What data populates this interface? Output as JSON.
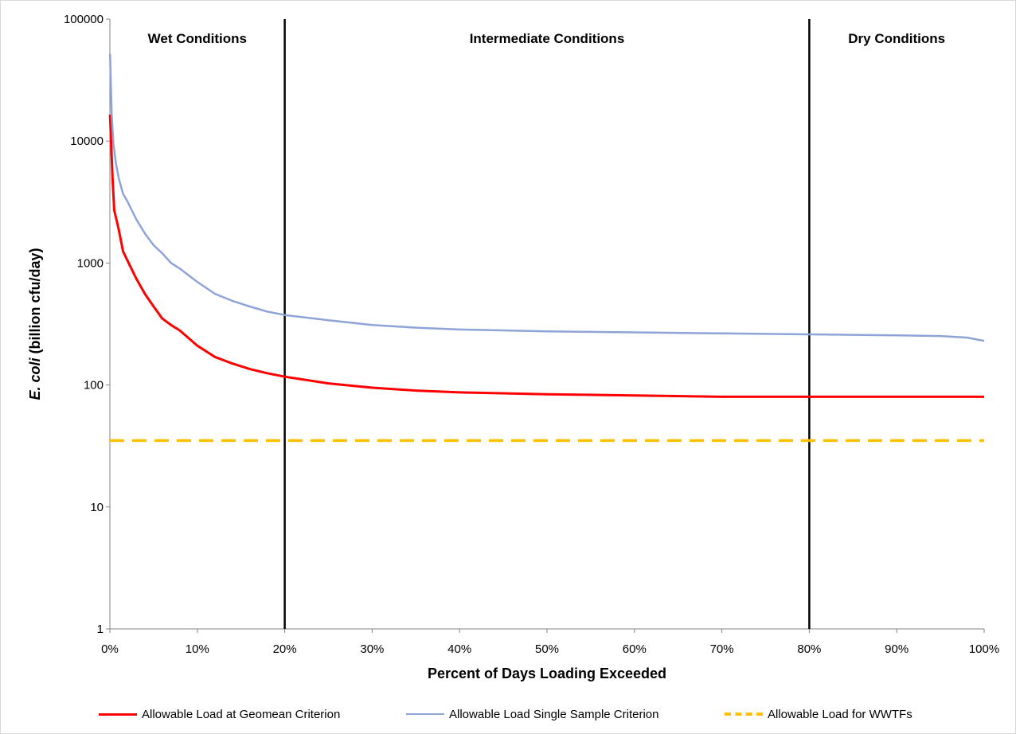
{
  "chart_data": {
    "type": "line",
    "title": "",
    "xlabel": "Percent of Days Loading Exceeded",
    "ylabel_italic": "E. coli",
    "ylabel_rest": " (billion cfu/day)",
    "yscale": "log",
    "ylim": [
      1,
      100000
    ],
    "xlim": [
      0,
      100
    ],
    "x_ticks": [
      "0%",
      "10%",
      "20%",
      "30%",
      "40%",
      "50%",
      "60%",
      "70%",
      "80%",
      "90%",
      "100%"
    ],
    "y_ticks": [
      "1",
      "10",
      "100",
      "1000",
      "10000",
      "100000"
    ],
    "grid": false,
    "legend_position": "bottom",
    "regions": [
      {
        "label": "Wet Conditions",
        "from": 0,
        "to": 20
      },
      {
        "label": "Intermediate Conditions",
        "from": 20,
        "to": 80
      },
      {
        "label": "Dry Conditions",
        "from": 80,
        "to": 100
      }
    ],
    "boundaries": [
      20,
      80
    ],
    "series": [
      {
        "name": "Allowable Load at Geomean Criterion",
        "color": "#ff0000",
        "style": "solid",
        "x": [
          0.02,
          0.3,
          0.5,
          1,
          1.5,
          2,
          3,
          4,
          5,
          6,
          7,
          8,
          10,
          12,
          14,
          16,
          18,
          20,
          25,
          30,
          35,
          40,
          50,
          60,
          70,
          80,
          90,
          100
        ],
        "y": [
          16500,
          5000,
          2700,
          1900,
          1250,
          1050,
          750,
          560,
          440,
          350,
          310,
          280,
          210,
          170,
          150,
          135,
          125,
          117,
          103,
          95,
          90,
          87,
          84,
          82,
          80,
          80,
          80,
          80
        ]
      },
      {
        "name": "Allowable Load Single Sample Criterion",
        "color": "#8ea4d8",
        "style": "solid",
        "x": [
          0.02,
          0.2,
          0.4,
          0.7,
          1,
          1.5,
          2,
          3,
          4,
          5,
          6,
          7,
          8,
          10,
          12,
          14,
          16,
          18,
          20,
          25,
          30,
          35,
          40,
          50,
          60,
          70,
          80,
          90,
          95,
          98,
          100
        ],
        "y": [
          52000,
          17000,
          9500,
          6500,
          5000,
          3700,
          3200,
          2300,
          1750,
          1400,
          1200,
          1000,
          900,
          700,
          560,
          490,
          440,
          400,
          375,
          340,
          310,
          295,
          285,
          275,
          270,
          265,
          260,
          255,
          252,
          245,
          230
        ]
      },
      {
        "name": "Allowable Load for WWTFs",
        "color": "#ffc000",
        "style": "dashed",
        "x": [
          0,
          100
        ],
        "y": [
          35,
          35
        ]
      }
    ]
  }
}
